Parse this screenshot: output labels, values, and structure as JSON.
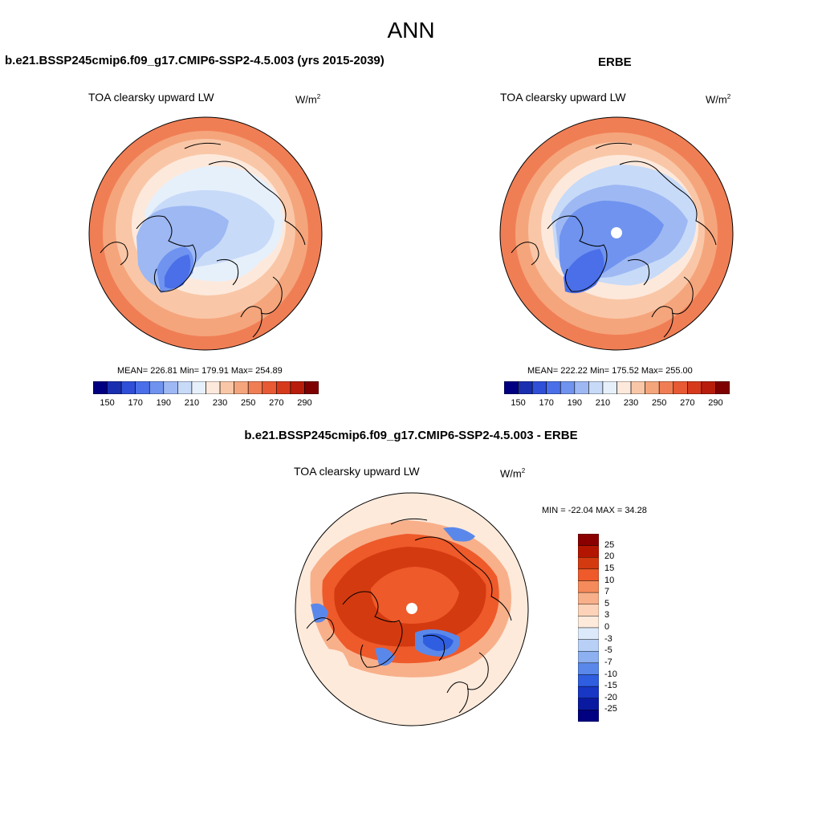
{
  "title": "ANN",
  "panels": [
    {
      "id": "model",
      "case_title": "b.e21.BSSP245cmip6.f09_g17.CMIP6-SSP2-4.5.003 (yrs 2015-2039)",
      "variable": "TOA clearsky upward LW",
      "units_base": "W/m",
      "units_exp": "2",
      "stats": "MEAN= 226.81  Min= 179.91  Max= 254.89"
    },
    {
      "id": "obs",
      "case_title": "ERBE",
      "variable": "TOA clearsky upward LW",
      "units_base": "W/m",
      "units_exp": "2",
      "stats": "MEAN= 222.22  Min= 175.52  Max= 255.00"
    },
    {
      "id": "diff",
      "case_title": "b.e21.BSSP245cmip6.f09_g17.CMIP6-SSP2-4.5.003 - ERBE",
      "variable": "TOA clearsky upward LW",
      "units_base": "W/m",
      "units_exp": "2",
      "stats": "MIN = -22.04 MAX =  34.28"
    }
  ],
  "colorbar_abs": {
    "colors": [
      "#000080",
      "#1a2fb0",
      "#2f4fd8",
      "#4a6fe8",
      "#6f93ef",
      "#9db8f3",
      "#c7daf8",
      "#e6f0fb",
      "#fde9dc",
      "#f9c7a7",
      "#f5a57c",
      "#f07e55",
      "#e85a33",
      "#d63a1d",
      "#b81d0c",
      "#7f0000"
    ],
    "labels": [
      "150",
      "170",
      "190",
      "210",
      "230",
      "250",
      "270",
      "290"
    ]
  },
  "colorbar_diff": {
    "colors": [
      "#8a0000",
      "#b41500",
      "#d43a10",
      "#ee5a2a",
      "#f58a5a",
      "#f8b08a",
      "#fcd3b8",
      "#fdeadb",
      "#dce9fa",
      "#b8d0f6",
      "#8cb0f0",
      "#5a88ea",
      "#2f5ee0",
      "#1737c4",
      "#0a1aa0",
      "#000080"
    ],
    "labels": [
      "25",
      "20",
      "15",
      "10",
      "7",
      "5",
      "3",
      "0",
      "-3",
      "-5",
      "-7",
      "-10",
      "-15",
      "-20",
      "-25"
    ]
  },
  "map_colors": {
    "deep_blue": "#4a6fe8",
    "mid_blue": "#6f93ef",
    "light_blue": "#9db8f3",
    "pale_blue": "#c7daf8",
    "ice_blue": "#e6f0fb",
    "pale_orange": "#fde9dc",
    "light_orange": "#f9c7a7",
    "orange": "#f5a57c",
    "dark_orange": "#f07e55",
    "diff_red_dark": "#d43a10",
    "diff_red": "#ee5a2a",
    "diff_salmon": "#f8b08a",
    "diff_pale": "#fdeadb",
    "diff_blue": "#5a88ea",
    "diff_blue_dark": "#2f5ee0"
  }
}
